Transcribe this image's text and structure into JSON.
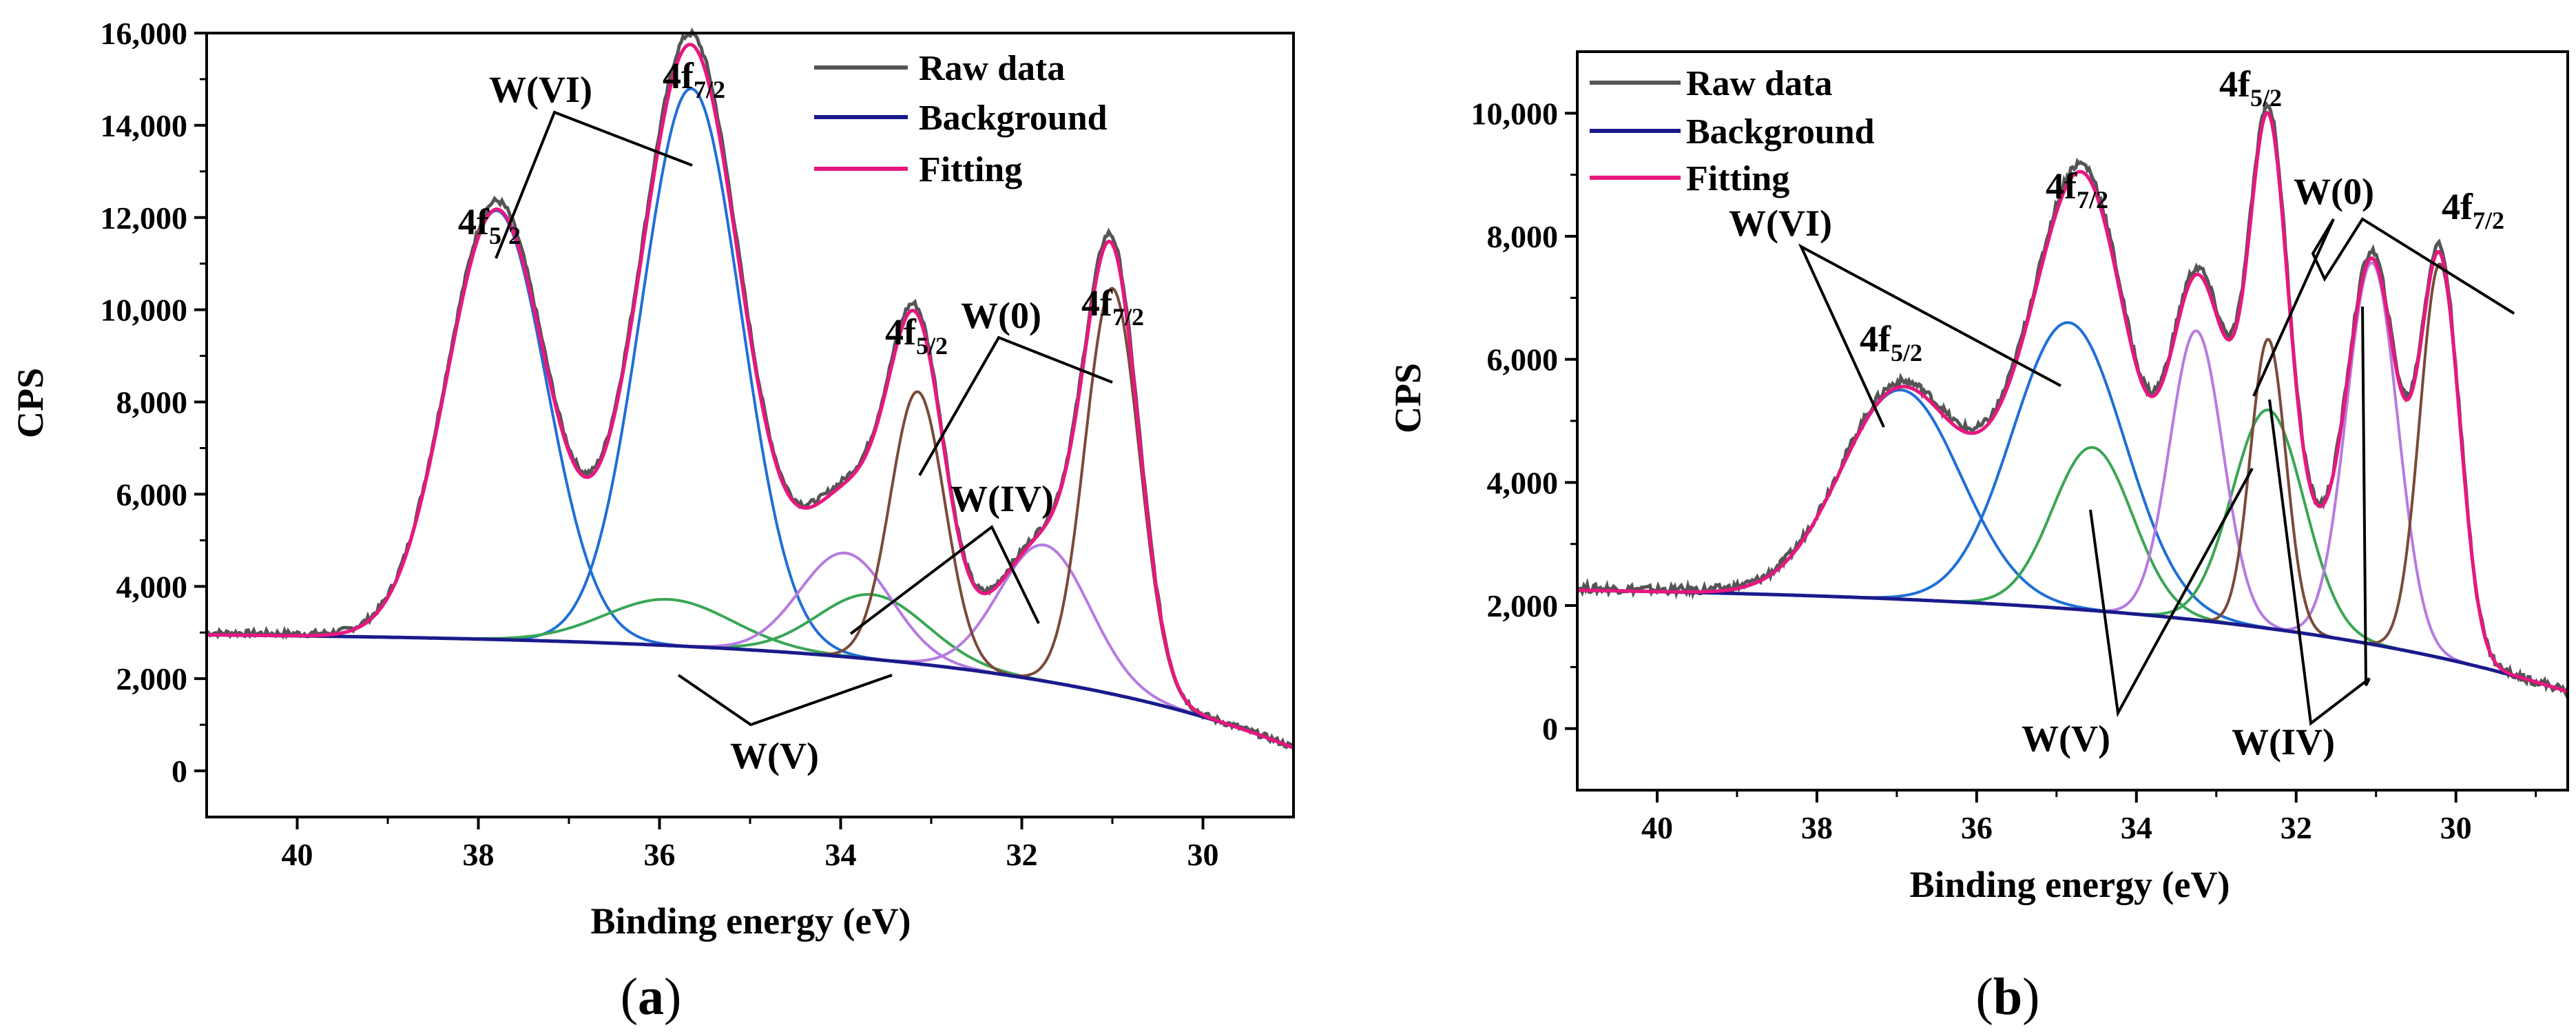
{
  "chart_data": [
    {
      "type": "line",
      "panel": "a",
      "panel_label": "a",
      "xlabel": "Binding energy (eV)",
      "ylabel": "CPS",
      "xlim": [
        41,
        29
      ],
      "ylim": [
        -1000,
        16000
      ],
      "x_ticks": [
        40,
        38,
        36,
        34,
        32,
        30
      ],
      "x_tick_labels": [
        "40",
        "38",
        "36",
        "34",
        "32",
        "30"
      ],
      "y_ticks": [
        0,
        2000,
        4000,
        6000,
        8000,
        10000,
        12000,
        14000,
        16000
      ],
      "y_tick_labels": [
        "0",
        "2,000",
        "4,000",
        "6,000",
        "8,000",
        "10,000",
        "12,000",
        "14,000",
        "16,000"
      ],
      "legend": [
        {
          "label": "Raw data",
          "color": "#555555"
        },
        {
          "label": "Background",
          "color": "#1a1a8c"
        },
        {
          "label": "Fitting",
          "color": "#e8177f"
        }
      ],
      "background": {
        "left": 2950,
        "right": 500,
        "center": 29,
        "scale": 3.2
      },
      "components": [
        {
          "name": "W(VI) 4f5/2",
          "center": 37.8,
          "amplitude": 9300,
          "sigma": 0.55,
          "color": "#1f6fd6"
        },
        {
          "name": "W(VI) 4f7/2",
          "center": 35.65,
          "amplitude": 12100,
          "sigma": 0.55,
          "color": "#1f6fd6"
        },
        {
          "name": "W(V) 4f5/2",
          "center": 35.9,
          "amplitude": 1000,
          "sigma": 0.7,
          "color": "#3aa655"
        },
        {
          "name": "W(V) 4f7/2",
          "center": 33.65,
          "amplitude": 1400,
          "sigma": 0.6,
          "color": "#3aa655"
        },
        {
          "name": "W(IV) 4f5/2",
          "center": 33.95,
          "amplitude": 2250,
          "sigma": 0.5,
          "color": "#b57be0"
        },
        {
          "name": "W(IV) 4f7/2",
          "center": 31.75,
          "amplitude": 2950,
          "sigma": 0.5,
          "color": "#b57be0"
        },
        {
          "name": "W(0) 4f5/2",
          "center": 33.15,
          "amplitude": 5900,
          "sigma": 0.3,
          "color": "#7a4a3a"
        },
        {
          "name": "W(0) 4f7/2",
          "center": 31.0,
          "amplitude": 8800,
          "sigma": 0.3,
          "color": "#7a4a3a"
        }
      ],
      "raw_offset": 200,
      "annotations": {
        "w6": "W(VI)",
        "w0": "W(0)",
        "w4": "W(IV)",
        "w5": "W(V)",
        "p1_main": "4f",
        "p1_sub": "5/2",
        "p2_main": "4f",
        "p2_sub": "7/2",
        "p3_main": "4f",
        "p3_sub": "5/2",
        "p4_main": "4f",
        "p4_sub": "7/2"
      }
    },
    {
      "type": "line",
      "panel": "b",
      "panel_label": "b",
      "xlabel": "Binding energy (eV)",
      "ylabel": "CPS",
      "xlim": [
        41,
        28.6
      ],
      "ylim": [
        -1000,
        11000
      ],
      "x_ticks": [
        40,
        38,
        36,
        34,
        32,
        30
      ],
      "x_tick_labels": [
        "40",
        "38",
        "36",
        "34",
        "32",
        "30"
      ],
      "y_ticks": [
        0,
        2000,
        4000,
        6000,
        8000,
        10000
      ],
      "y_tick_labels": [
        "0",
        "2,000",
        "4,000",
        "6,000",
        "8,000",
        "10,000"
      ],
      "legend": [
        {
          "label": "Raw data",
          "color": "#555555"
        },
        {
          "label": "Background",
          "color": "#1a1a8c"
        },
        {
          "label": "Fitting",
          "color": "#e8177f"
        }
      ],
      "background": {
        "left": 2250,
        "right": 600,
        "center": 28.6,
        "scale": 4.2
      },
      "components": [
        {
          "name": "W(VI) 4f5/2",
          "center": 36.95,
          "amplitude": 3400,
          "sigma": 0.75,
          "color": "#1f6fd6"
        },
        {
          "name": "W(VI) 4f7/2",
          "center": 34.85,
          "amplitude": 4650,
          "sigma": 0.7,
          "color": "#1f6fd6"
        },
        {
          "name": "W(V) 4f5/2",
          "center": 34.55,
          "amplitude": 2650,
          "sigma": 0.5,
          "color": "#3aa655"
        },
        {
          "name": "W(V) 4f7/2",
          "center": 32.35,
          "amplitude": 3550,
          "sigma": 0.45,
          "color": "#3aa655"
        },
        {
          "name": "W(IV) 4f5/2",
          "center": 33.25,
          "amplitude": 4700,
          "sigma": 0.33,
          "color": "#b57be0"
        },
        {
          "name": "W(IV) 4f7/2",
          "center": 31.05,
          "amplitude": 6200,
          "sigma": 0.32,
          "color": "#b57be0"
        },
        {
          "name": "W(0) 4f5/2",
          "center": 32.35,
          "amplitude": 4700,
          "sigma": 0.22,
          "color": "#7a4a3a"
        },
        {
          "name": "W(0) 4f7/2",
          "center": 30.2,
          "amplitude": 6400,
          "sigma": 0.25,
          "color": "#7a4a3a"
        }
      ],
      "raw_offset": 200,
      "annotations": {
        "w6": "W(VI)",
        "w0": "W(0)",
        "w4": "W(IV)",
        "w5": "W(V)",
        "p1_main": "4f",
        "p1_sub": "5/2",
        "p2_main": "4f",
        "p2_sub": "7/2",
        "p3_main": "4f",
        "p3_sub": "5/2",
        "p4_main": "4f",
        "p4_sub": "7/2"
      }
    }
  ]
}
